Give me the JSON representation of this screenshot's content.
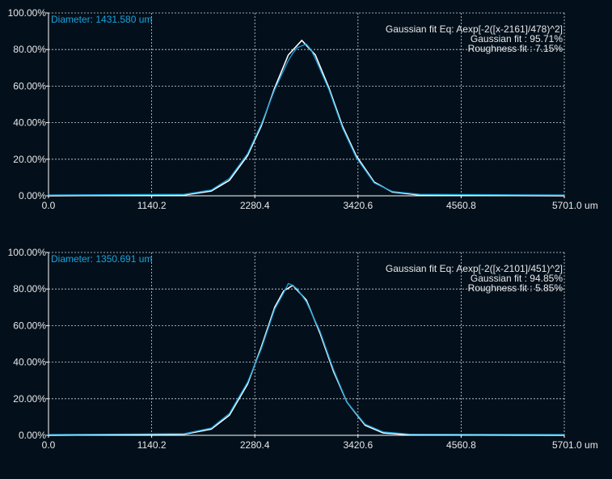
{
  "theme": {
    "background": "#03101b",
    "axis": "#ffffff",
    "grid": "#cfd6dc",
    "measured": "#1aa3dd",
    "fit": "#ffffff",
    "diameter_text": "#1aa3dd",
    "text": "#e8e8e8"
  },
  "chart_data": [
    {
      "type": "line",
      "diameter_label": "Diameter: 1431.580 um",
      "fit_equation": "Gaussian fit Eq: Aexp[-2([x-2161]/478)^2]",
      "gaussian_fit": "Gaussian fit : 95.71%",
      "roughness_fit": "Roughness fit : 7.15%",
      "xlim": [
        0,
        5701.0
      ],
      "ylim": [
        0,
        100
      ],
      "x_ticks": [
        "0.0",
        "1140.2",
        "2280.4",
        "3420.6",
        "4560.8",
        "5701.0 um"
      ],
      "y_ticks": [
        "0.00%",
        "20.00%",
        "40.00%",
        "60.00%",
        "80.00%",
        "100.00%"
      ],
      "grid": true,
      "series": [
        {
          "kind": "fit",
          "x": [
            1500,
            1800,
            2000,
            2200,
            2350,
            2500,
            2650,
            2800,
            2950,
            3100,
            3250,
            3400,
            3600,
            3800,
            4100
          ],
          "y": [
            0.5,
            2.6,
            8.5,
            22,
            38,
            59,
            77,
            85,
            77,
            59,
            38,
            22,
            7.5,
            2.1,
            0.4
          ]
        },
        {
          "kind": "measured",
          "x": [
            1500,
            1800,
            2000,
            2200,
            2350,
            2500,
            2650,
            2700,
            2750,
            2800,
            2850,
            2900,
            2950,
            3100,
            3250,
            3400,
            3600,
            3800,
            4100
          ],
          "y": [
            0.8,
            3.2,
            9.5,
            23,
            39,
            58,
            74,
            78,
            81,
            82,
            83,
            80,
            75,
            58,
            37,
            21,
            7,
            2.4,
            0.8
          ]
        }
      ]
    },
    {
      "type": "line",
      "diameter_label": "Diameter: 1350.691 um",
      "fit_equation": "Gaussian fit Eq: Aexp[-2([x-2101]/451)^2]",
      "gaussian_fit": "Gaussian fit : 94.85%",
      "roughness_fit": "Roughness fit : 5.85%",
      "xlim": [
        0,
        5701.0
      ],
      "ylim": [
        0,
        100
      ],
      "x_ticks": [
        "0.0",
        "1140.2",
        "2280.4",
        "3420.6",
        "4560.8",
        "5701.0 um"
      ],
      "y_ticks": [
        "0.00%",
        "20.00%",
        "40.00%",
        "60.00%",
        "80.00%",
        "100.00%"
      ],
      "grid": true,
      "series": [
        {
          "kind": "fit",
          "x": [
            1500,
            1800,
            2000,
            2200,
            2350,
            2500,
            2600,
            2700,
            2850,
            3000,
            3150,
            3300,
            3500,
            3700,
            4000
          ],
          "y": [
            0.6,
            3.4,
            11,
            28,
            48,
            70,
            79,
            82,
            74,
            56,
            35,
            18,
            5.5,
            1.3,
            0.2
          ]
        },
        {
          "kind": "measured",
          "x": [
            1500,
            1800,
            2000,
            2200,
            2350,
            2500,
            2600,
            2650,
            2700,
            2750,
            2850,
            3000,
            3150,
            3300,
            3500,
            3700,
            4000
          ],
          "y": [
            0.9,
            4,
            12,
            29,
            47,
            69,
            78,
            83,
            82,
            80,
            73,
            57,
            36,
            18,
            6,
            1.8,
            0.6
          ]
        }
      ]
    }
  ]
}
